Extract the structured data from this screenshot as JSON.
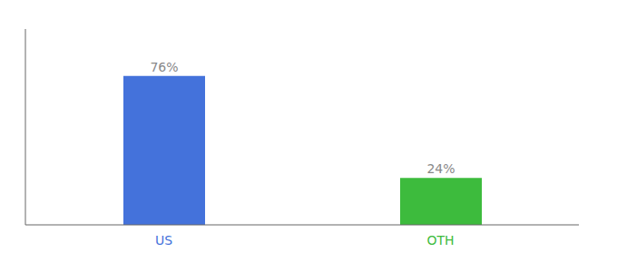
{
  "chart_data": {
    "type": "bar",
    "categories": [
      "US",
      "OTH"
    ],
    "values": [
      76,
      24
    ],
    "value_labels": [
      "76%",
      "24%"
    ],
    "colors": [
      "#4472db",
      "#3dbb3d"
    ],
    "ylim": [
      0,
      100
    ],
    "data_labels": true,
    "tick_labels": "x"
  }
}
